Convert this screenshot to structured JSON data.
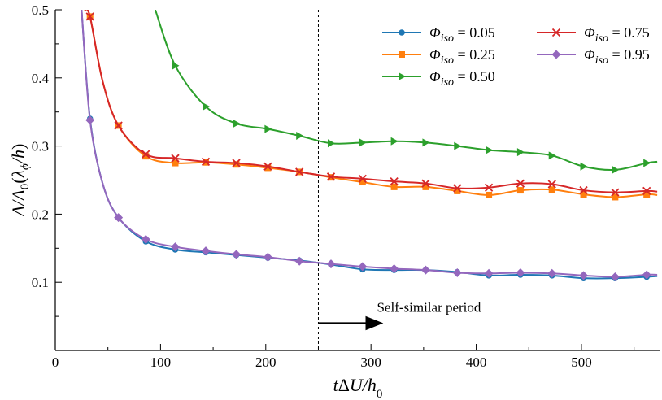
{
  "chart_data": {
    "type": "line",
    "xlabel": "tΔU/h0",
    "ylabel": "A/A0(λϕ/h)",
    "xlim": [
      0,
      575
    ],
    "ylim": [
      0,
      0.5
    ],
    "x_ticks": [
      0,
      100,
      200,
      300,
      400,
      500
    ],
    "y_ticks": [
      0.1,
      0.2,
      0.3,
      0.4,
      0.5
    ],
    "grid": false,
    "legend_position": "top-right",
    "vline_x": 250,
    "annotation": {
      "text": "Self-similar period",
      "arrow_from_x": 250,
      "arrow_to_x": 310,
      "y": 0.04
    },
    "series": [
      {
        "name": "Φiso = 0.05",
        "legend_symbol": "Φ",
        "legend_sub": "iso",
        "legend_value": " = 0.05",
        "color": "#1f77b4",
        "marker": "circle",
        "x": [
          25,
          33,
          45,
          60,
          86,
          114,
          143,
          172,
          202,
          232,
          262,
          292,
          322,
          352,
          382,
          412,
          442,
          472,
          502,
          532,
          562,
          572
        ],
        "y": [
          0.5,
          0.34,
          0.245,
          0.195,
          0.16,
          0.148,
          0.144,
          0.14,
          0.136,
          0.132,
          0.126,
          0.119,
          0.118,
          0.118,
          0.115,
          0.11,
          0.111,
          0.11,
          0.106,
          0.106,
          0.108,
          0.109
        ],
        "marker_x": [
          33,
          60,
          86,
          114,
          143,
          172,
          202,
          232,
          262,
          292,
          322,
          352,
          382,
          412,
          442,
          472,
          502,
          532,
          562
        ],
        "marker_y": [
          0.34,
          0.195,
          0.16,
          0.148,
          0.144,
          0.14,
          0.136,
          0.132,
          0.126,
          0.119,
          0.118,
          0.118,
          0.115,
          0.11,
          0.111,
          0.11,
          0.106,
          0.106,
          0.108
        ]
      },
      {
        "name": "Φiso = 0.25",
        "legend_symbol": "Φ",
        "legend_sub": "iso",
        "legend_value": " = 0.25",
        "color": "#ff7f0e",
        "marker": "square",
        "x": [
          28,
          33,
          45,
          60,
          86,
          114,
          143,
          172,
          202,
          232,
          262,
          292,
          322,
          352,
          382,
          412,
          442,
          472,
          502,
          532,
          562,
          572
        ],
        "y": [
          0.5,
          0.49,
          0.395,
          0.33,
          0.285,
          0.275,
          0.276,
          0.273,
          0.268,
          0.262,
          0.254,
          0.247,
          0.24,
          0.24,
          0.234,
          0.228,
          0.235,
          0.236,
          0.229,
          0.225,
          0.229,
          0.228
        ],
        "marker_x": [
          33,
          60,
          86,
          114,
          143,
          172,
          202,
          232,
          262,
          292,
          322,
          352,
          382,
          412,
          442,
          472,
          502,
          532,
          562
        ],
        "marker_y": [
          0.49,
          0.33,
          0.285,
          0.275,
          0.276,
          0.273,
          0.268,
          0.262,
          0.254,
          0.247,
          0.24,
          0.24,
          0.234,
          0.228,
          0.235,
          0.236,
          0.229,
          0.225,
          0.229
        ]
      },
      {
        "name": "Φiso = 0.50",
        "legend_symbol": "Φ",
        "legend_sub": "iso",
        "legend_value": " = 0.50",
        "color": "#2ca02c",
        "marker": "triangle-right",
        "x": [
          95,
          114,
          143,
          172,
          202,
          232,
          262,
          292,
          322,
          352,
          382,
          412,
          442,
          472,
          502,
          532,
          562,
          572
        ],
        "y": [
          0.5,
          0.418,
          0.358,
          0.333,
          0.325,
          0.315,
          0.304,
          0.305,
          0.307,
          0.305,
          0.3,
          0.294,
          0.291,
          0.286,
          0.27,
          0.265,
          0.275,
          0.277
        ],
        "marker_x": [
          114,
          143,
          172,
          202,
          232,
          262,
          292,
          322,
          352,
          382,
          412,
          442,
          472,
          502,
          532,
          562
        ],
        "marker_y": [
          0.418,
          0.358,
          0.333,
          0.325,
          0.315,
          0.304,
          0.305,
          0.307,
          0.305,
          0.3,
          0.294,
          0.291,
          0.286,
          0.27,
          0.265,
          0.275
        ]
      },
      {
        "name": "Φiso = 0.75",
        "legend_symbol": "Φ",
        "legend_sub": "iso",
        "legend_value": " = 0.75",
        "color": "#d62728",
        "marker": "x",
        "x": [
          28,
          33,
          45,
          60,
          86,
          114,
          143,
          172,
          202,
          232,
          262,
          292,
          322,
          352,
          382,
          412,
          442,
          472,
          502,
          532,
          562,
          572
        ],
        "y": [
          0.5,
          0.49,
          0.395,
          0.33,
          0.288,
          0.282,
          0.277,
          0.275,
          0.27,
          0.262,
          0.255,
          0.252,
          0.248,
          0.245,
          0.238,
          0.239,
          0.245,
          0.244,
          0.235,
          0.232,
          0.234,
          0.233
        ],
        "marker_x": [
          33,
          60,
          86,
          114,
          143,
          172,
          202,
          232,
          262,
          292,
          322,
          352,
          382,
          412,
          442,
          472,
          502,
          532,
          562
        ],
        "marker_y": [
          0.49,
          0.33,
          0.288,
          0.282,
          0.277,
          0.275,
          0.27,
          0.262,
          0.255,
          0.252,
          0.248,
          0.245,
          0.238,
          0.239,
          0.245,
          0.244,
          0.235,
          0.232,
          0.234
        ]
      },
      {
        "name": "Φiso = 0.95",
        "legend_symbol": "Φ",
        "legend_sub": "iso",
        "legend_value": " = 0.95",
        "color": "#9467bd",
        "marker": "diamond",
        "x": [
          25,
          33,
          45,
          60,
          86,
          114,
          143,
          172,
          202,
          232,
          262,
          292,
          322,
          352,
          382,
          412,
          442,
          472,
          502,
          532,
          562,
          572
        ],
        "y": [
          0.5,
          0.338,
          0.245,
          0.195,
          0.163,
          0.152,
          0.146,
          0.141,
          0.137,
          0.131,
          0.127,
          0.123,
          0.12,
          0.118,
          0.114,
          0.113,
          0.114,
          0.113,
          0.11,
          0.108,
          0.111,
          0.111
        ],
        "marker_x": [
          33,
          60,
          86,
          114,
          143,
          172,
          202,
          232,
          262,
          292,
          322,
          352,
          382,
          412,
          442,
          472,
          502,
          532,
          562
        ],
        "marker_y": [
          0.338,
          0.195,
          0.163,
          0.152,
          0.146,
          0.141,
          0.137,
          0.131,
          0.127,
          0.123,
          0.12,
          0.118,
          0.114,
          0.113,
          0.114,
          0.113,
          0.11,
          0.108,
          0.111
        ]
      }
    ]
  }
}
